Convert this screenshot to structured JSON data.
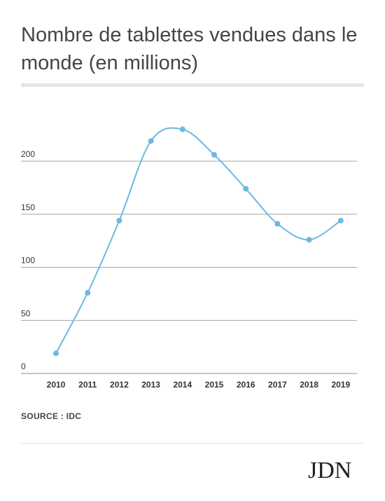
{
  "title": "Nombre de tablettes vendues dans le monde (en millions)",
  "source": "SOURCE : IDC",
  "logo": "JDN",
  "colors": {
    "line": "#6db8e0",
    "grid": "#888888",
    "text": "#333333"
  },
  "chart_data": {
    "type": "line",
    "x": [
      "2010",
      "2011",
      "2012",
      "2013",
      "2014",
      "2015",
      "2016",
      "2017",
      "2018",
      "2019"
    ],
    "series": [
      {
        "values": [
          19,
          76,
          144,
          219,
          230,
          206,
          174,
          141,
          126,
          144
        ]
      }
    ],
    "yticks": [
      0,
      50,
      100,
      150,
      200
    ],
    "ylim": [
      0,
      250
    ],
    "grid": true,
    "smooth": true
  }
}
